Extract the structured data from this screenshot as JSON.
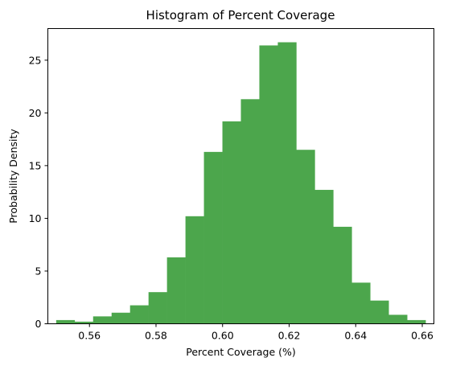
{
  "chart_data": {
    "type": "bar",
    "title": "Histogram of Percent Coverage",
    "xlabel": "Percent Coverage (%)",
    "ylabel": "Probability Density",
    "xlim": [
      0.5475,
      0.6635
    ],
    "ylim": [
      0,
      28.0
    ],
    "x_ticks": [
      0.56,
      0.58,
      0.6,
      0.62,
      0.64,
      0.66
    ],
    "x_tick_labels": [
      "0.56",
      "0.58",
      "0.60",
      "0.62",
      "0.64",
      "0.66"
    ],
    "y_ticks": [
      0,
      5,
      10,
      15,
      20,
      25
    ],
    "y_tick_labels": [
      "0",
      "5",
      "10",
      "15",
      "20",
      "25"
    ],
    "bin_start": 0.55,
    "bin_width": 0.00555,
    "values": [
      0.35,
      0.2,
      0.7,
      1.05,
      1.75,
      3.0,
      6.3,
      10.2,
      16.3,
      19.2,
      21.3,
      26.4,
      26.7,
      16.5,
      12.7,
      9.2,
      3.9,
      2.2,
      0.85,
      0.35
    ],
    "bar_color": "#4ca64c",
    "grid": false,
    "legend": "none"
  }
}
